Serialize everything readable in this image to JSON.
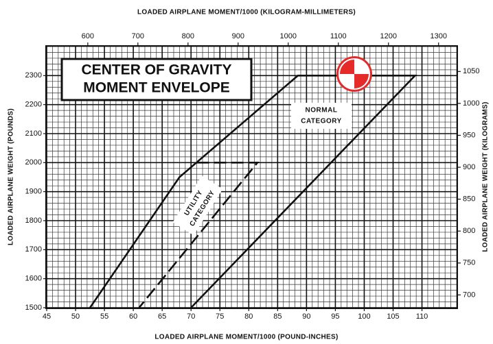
{
  "chart_data": {
    "type": "line",
    "title": [
      "CENTER OF GRAVITY",
      "MOMENT ENVELOPE"
    ],
    "x_label": "LOADED AIRPLANE MOMENT/1000 (POUND-INCHES)",
    "x2_label": "LOADED AIRPLANE MOMENT/1000 (KILOGRAM-MILLIMETERS)",
    "y_label": "LOADED AIRPLANE WEIGHT (POUNDS)",
    "y2_label": "LOADED AIRPLANE WEIGHT (KILOGRAMS)",
    "xlim": [
      45,
      116
    ],
    "xticks": [
      45,
      50,
      55,
      60,
      65,
      70,
      75,
      80,
      85,
      90,
      95,
      100,
      105,
      110
    ],
    "x2lim": [
      518,
      1336
    ],
    "x2ticks": [
      600,
      700,
      800,
      900,
      1000,
      1100,
      1200,
      1300
    ],
    "ylim": [
      1500,
      2400
    ],
    "yticks": [
      1500,
      1600,
      1700,
      1800,
      1900,
      2000,
      2100,
      2200,
      2300
    ],
    "y2lim": [
      680,
      1089
    ],
    "y2ticks": [
      700,
      750,
      800,
      850,
      900,
      950,
      1000,
      1050
    ],
    "grid": true,
    "series": [
      {
        "color": "#111111",
        "dashed": false,
        "x": [
          52.5,
          68,
          88.5,
          108.8,
          70
        ],
        "y": [
          1500,
          1950,
          2300,
          2300,
          1500
        ]
      },
      {
        "color": "#111111",
        "dashed": true,
        "x": [
          71,
          81.5,
          61
        ],
        "y": [
          2000,
          2000,
          1500
        ]
      }
    ],
    "annotations": [
      {
        "lines": [
          "NORMAL",
          "CATEGORY"
        ]
      },
      {
        "lines": [
          "UTILITY",
          "CATEGORY"
        ]
      }
    ]
  }
}
